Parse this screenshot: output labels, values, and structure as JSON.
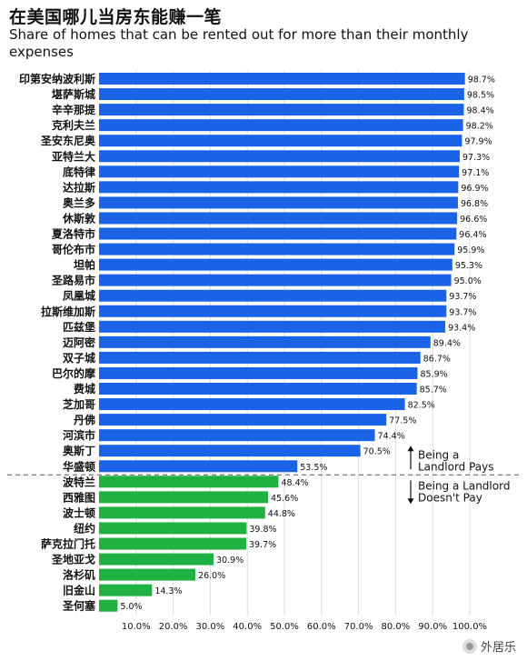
{
  "chart_data": {
    "type": "bar",
    "orientation": "horizontal",
    "title": "在美国哪儿当房东能赚一笔",
    "subtitle": "Share of homes that can be rented out for more than their monthly expenses",
    "categories": [
      "印第安纳波利斯",
      "堪萨斯城",
      "辛辛那提",
      "克利夫兰",
      "圣安东尼奥",
      "亚特兰大",
      "底特律",
      "达拉斯",
      "奥兰多",
      "休斯敦",
      "夏洛特市",
      "哥伦布市",
      "坦帕",
      "圣路易市",
      "凤凰城",
      "拉斯维加斯",
      "匹兹堡",
      "迈阿密",
      "双子城",
      "巴尔的摩",
      "费城",
      "芝加哥",
      "丹佛",
      "河滨市",
      "奥斯丁",
      "华盛顿",
      "波特兰",
      "西雅图",
      "波士顿",
      "纽约",
      "萨克拉门托",
      "圣地亚戈",
      "洛杉矶",
      "旧金山",
      "圣何塞"
    ],
    "values": [
      98.7,
      98.5,
      98.4,
      98.2,
      97.9,
      97.3,
      97.1,
      96.9,
      96.8,
      96.6,
      96.4,
      95.9,
      95.3,
      95.0,
      93.7,
      93.7,
      93.4,
      89.4,
      86.7,
      85.9,
      85.7,
      82.5,
      77.5,
      74.4,
      70.5,
      53.5,
      48.4,
      45.6,
      44.8,
      39.8,
      39.7,
      30.9,
      26.0,
      14.3,
      5.0
    ],
    "value_labels": [
      "98.7%",
      "98.5%",
      "98.4%",
      "98.2%",
      "97.9%",
      "97.3%",
      "97.1%",
      "96.9%",
      "96.8%",
      "96.6%",
      "96.4%",
      "95.9%",
      "95.3%",
      "95.0%",
      "93.7%",
      "93.7%",
      "93.4%",
      "89.4%",
      "86.7%",
      "85.9%",
      "85.7%",
      "82.5%",
      "77.5%",
      "74.4%",
      "70.5%",
      "53.5%",
      "48.4%",
      "45.6%",
      "44.8%",
      "39.8%",
      "39.7%",
      "30.9%",
      "26.0%",
      "14.3%",
      "5.0%"
    ],
    "group_split_after": 26,
    "groups": [
      {
        "label_line1": "Being a",
        "label_line2": "Landlord Pays",
        "color": "#1a63e6"
      },
      {
        "label_line1": "Being a Landlord",
        "label_line2": "Doesn't Pay",
        "color": "#1fb141"
      }
    ],
    "xlim": [
      0,
      100
    ],
    "xticks": [
      "10.0%",
      "20.0%",
      "30.0%",
      "40.0%",
      "50.0%",
      "60.0%",
      "70.0%",
      "80.0%",
      "90.0%",
      "100.0%"
    ],
    "xtick_values": [
      10,
      20,
      30,
      40,
      50,
      60,
      70,
      80,
      90,
      100
    ],
    "grid": true,
    "colors": {
      "pays": "#1a63e6",
      "not_pays": "#1fb141",
      "grid": "#dcdcdc"
    }
  },
  "watermark": {
    "text": "外居乐",
    "icon": "wechat-icon"
  }
}
